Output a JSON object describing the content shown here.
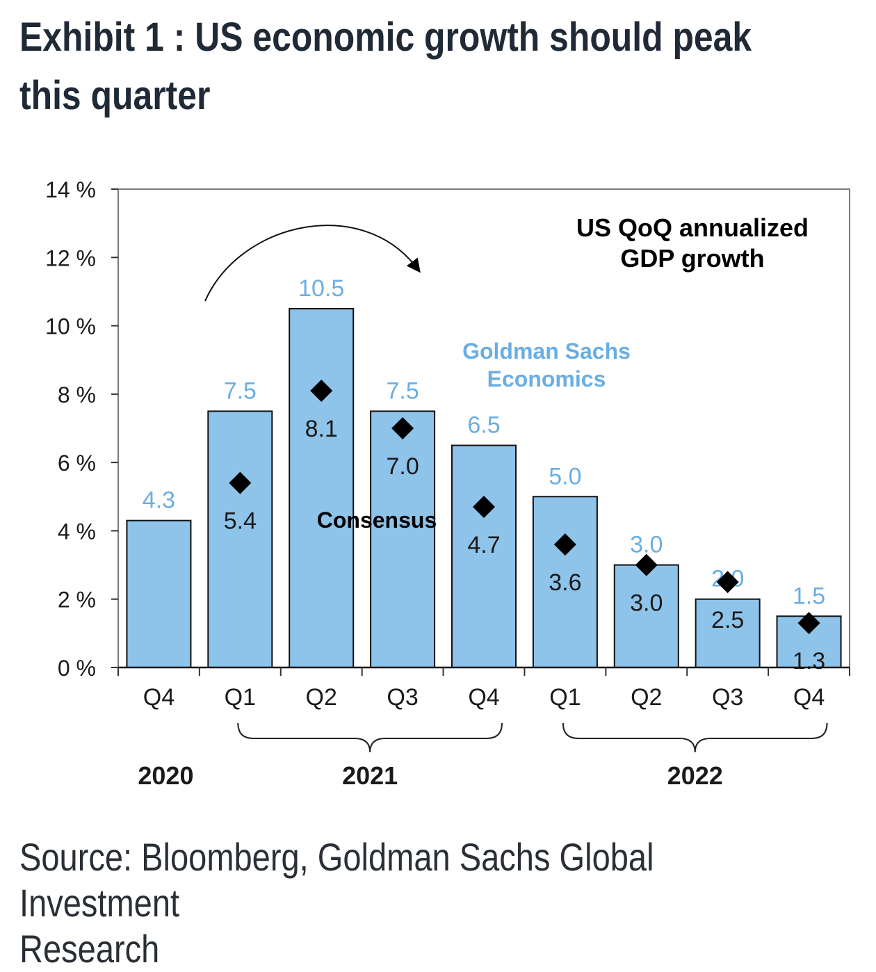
{
  "header": {
    "title_line1": "Exhibit 1 : US economic growth should peak",
    "title_line2": "this quarter"
  },
  "footer": {
    "source_line1": "Source: Bloomberg, Goldman Sachs Global Investment",
    "source_line2": "Research"
  },
  "colors": {
    "bar_fill": "#8ec3ea",
    "bar_label": "#6aaee3",
    "gs_label": "#6aaee3",
    "marker": "#000000",
    "text": "#1a1a1a"
  },
  "chart_data": {
    "type": "bar",
    "title": "US QoQ annualized GDP growth",
    "title_lines": [
      "US QoQ annualized",
      "GDP growth"
    ],
    "categories": [
      "Q4",
      "Q1",
      "Q2",
      "Q3",
      "Q4",
      "Q1",
      "Q2",
      "Q3",
      "Q4"
    ],
    "year_groups": [
      {
        "label": "2020",
        "start": 0,
        "end": 0
      },
      {
        "label": "2021",
        "start": 1,
        "end": 4
      },
      {
        "label": "2022",
        "start": 5,
        "end": 8
      }
    ],
    "series": [
      {
        "name": "Goldman Sachs Economics",
        "name_lines": [
          "Goldman Sachs",
          "Economics"
        ],
        "kind": "bar",
        "values": [
          4.3,
          7.5,
          10.5,
          7.5,
          6.5,
          5.0,
          3.0,
          2.0,
          1.5
        ],
        "labels": [
          "4.3",
          "7.5",
          "10.5",
          "7.5",
          "6.5",
          "5.0",
          "3.0",
          "2.0",
          "1.5"
        ]
      },
      {
        "name": "Consensus",
        "kind": "marker",
        "values": [
          null,
          5.4,
          8.1,
          7.0,
          4.7,
          3.6,
          3.0,
          2.5,
          1.3
        ],
        "labels": [
          "",
          "5.4",
          "8.1",
          "7.0",
          "4.7",
          "3.6",
          "3.0",
          "2.5",
          "1.3"
        ]
      }
    ],
    "ylim": [
      0,
      14
    ],
    "yticks": [
      0,
      2,
      4,
      6,
      8,
      10,
      12,
      14
    ],
    "ytick_labels": [
      "0 %",
      "2 %",
      "4 %",
      "6 %",
      "8 %",
      "10 %",
      "12 %",
      "14 %"
    ],
    "xlabel": "",
    "ylabel": "",
    "grid": false,
    "legend": "annotations inside plot"
  }
}
